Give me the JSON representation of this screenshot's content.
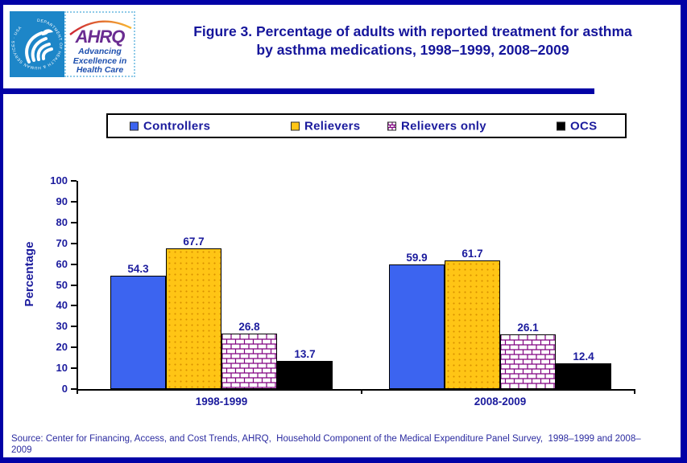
{
  "header": {
    "figure_title_line1": "Figure 3. Percentage of adults with reported treatment for asthma",
    "figure_title_line2": "by asthma medications, 1998–1999, 2008–2009",
    "hhs_ring_text": "DEPARTMENT OF HEALTH & HUMAN SERVICES · USA",
    "ahrq_acronym": "AHRQ",
    "ahrq_tagline": "Advancing Excellence in Health Care"
  },
  "chart_data": {
    "type": "bar",
    "title": "Figure 3. Percentage of adults with reported treatment for asthma by asthma medications, 1998–1999, 2008–2009",
    "categories": [
      "1998-1999",
      "2008-2009"
    ],
    "series": [
      {
        "name": "Controllers",
        "values": [
          54.3,
          59.9
        ],
        "color": "#3c64f0",
        "pattern": "solid"
      },
      {
        "name": "Relievers",
        "values": [
          67.7,
          61.7
        ],
        "color": "#ffc515",
        "pattern": "dots"
      },
      {
        "name": "Relievers only",
        "values": [
          26.8,
          26.1
        ],
        "color": "#800080",
        "pattern": "brick"
      },
      {
        "name": "OCS",
        "values": [
          13.7,
          12.4
        ],
        "color": "#000000",
        "pattern": "solid"
      }
    ],
    "ylabel": "Percentage",
    "ylim": [
      0,
      100
    ],
    "ytick_step": 10,
    "grid": false,
    "legend_position": "top",
    "bar_labels": true
  },
  "source": "Source: Center for Financing, Access, and Cost Trends, AHRQ,  Household Component of the Medical Expenditure Panel Survey,  1998–1999 and 2008–2009"
}
